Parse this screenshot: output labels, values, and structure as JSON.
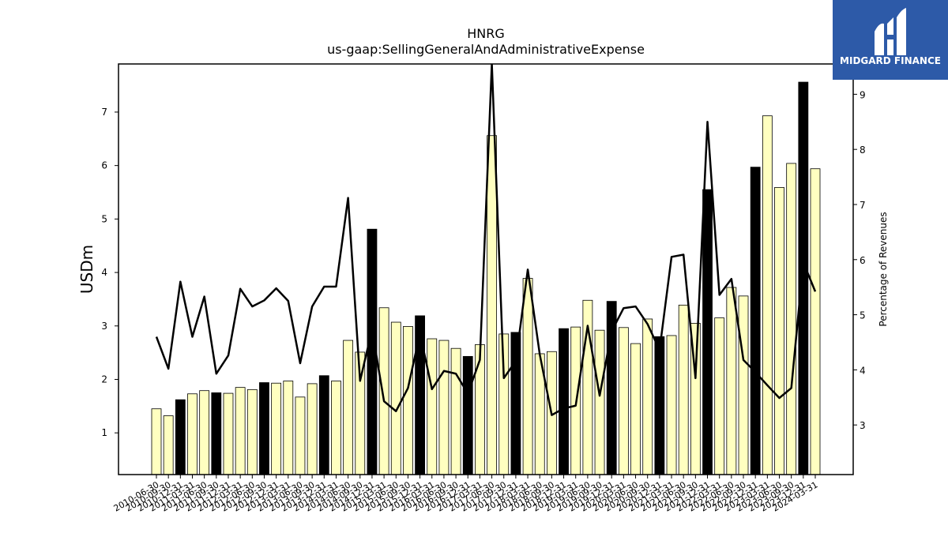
{
  "chart_data": {
    "type": "bar",
    "title": "HNRG",
    "subtitle": "us-gaap:SellingGeneralAndAdministrativeExpense",
    "ylabel": "USDm",
    "ylabel_right": "Percentage of Revenues",
    "ylim": [
      0.22,
      7.9
    ],
    "ylim_right": [
      2.1,
      9.55
    ],
    "yticks": [
      1,
      2,
      3,
      4,
      5,
      6,
      7
    ],
    "yticks_right": [
      3,
      4,
      5,
      6,
      7,
      8,
      9
    ],
    "grid": false,
    "bar_color_default": "#ffffc0",
    "bar_color_highlight": "#000000",
    "line_color": "#000000",
    "categories": [
      "2010-06-30",
      "2010-09-30",
      "2010-12-31",
      "2011-03-31",
      "2011-06-30",
      "2011-09-30",
      "2011-12-31",
      "2012-03-31",
      "2012-06-30",
      "2012-09-30",
      "2012-12-31",
      "2013-03-31",
      "2013-06-30",
      "2013-09-30",
      "2013-12-31",
      "2014-03-31",
      "2014-06-30",
      "2014-09-30",
      "2014-12-31",
      "2015-03-31",
      "2015-06-30",
      "2015-09-30",
      "2015-12-31",
      "2016-03-31",
      "2016-06-30",
      "2016-09-30",
      "2016-12-31",
      "2017-03-31",
      "2017-06-30",
      "2017-09-30",
      "2017-12-31",
      "2018-03-31",
      "2018-06-30",
      "2018-09-30",
      "2018-12-31",
      "2019-03-31",
      "2019-06-30",
      "2019-09-30",
      "2019-12-31",
      "2020-03-31",
      "2020-06-30",
      "2020-09-30",
      "2020-12-31",
      "2021-03-31",
      "2021-06-30",
      "2021-09-30",
      "2021-12-31",
      "2022-03-31",
      "2022-06-30",
      "2022-09-30",
      "2022-12-31",
      "2023-03-31",
      "2023-06-30",
      "2023-09-30",
      "2023-12-31",
      "2024-03-31"
    ],
    "xtick_labels": [
      "2010-06-30",
      "2010-09-30",
      "2010-12-31",
      "2011-03-31",
      "2011-06-30",
      "2011-09-30",
      "2011-12-31",
      "2012-03-31",
      "2012-06-30",
      "2012-09-30",
      "2012-12-31",
      "2013-03-31",
      "2013-06-30",
      "2013-09-30",
      "2013-12-31",
      "2014-03-31",
      "2014-06-30",
      "2014-09-30",
      "2014-12-31",
      "2015-03-31",
      "2015-06-30",
      "2015-09-30",
      "2015-12-31",
      "2016-03-31",
      "2016-06-30",
      "2016-09-30",
      "2016-12-31",
      "2017-03-31",
      "2017-06-30",
      "2017-09-30",
      "2017-12-31",
      "2018-03-31",
      "2018-06-30",
      "2018-09-30",
      "2018-12-31",
      "2019-03-31",
      "2019-06-30",
      "2019-09-30",
      "2019-12-31",
      "2020-03-31",
      "2020-06-30",
      "2020-09-30",
      "2020-12-31",
      "2021-03-31",
      "2021-06-30",
      "2021-09-30",
      "2021-12-31",
      "2022-03-31",
      "2022-06-30",
      "2022-09-30",
      "2022-12-31",
      "2023-03-31",
      "2023-06-30",
      "2023-09-30",
      "2023-12-31",
      "2024-03-31"
    ],
    "series": [
      {
        "axis": "left",
        "kind": "bar",
        "values": [
          1.45,
          1.32,
          1.62,
          1.73,
          1.79,
          1.75,
          1.74,
          1.85,
          1.81,
          1.94,
          1.93,
          1.97,
          1.67,
          1.92,
          2.07,
          1.97,
          2.73,
          2.51,
          4.81,
          3.34,
          3.07,
          2.99,
          3.19,
          2.76,
          2.73,
          2.58,
          2.43,
          2.65,
          6.56,
          2.85,
          2.88,
          3.89,
          2.48,
          2.52,
          2.95,
          2.98,
          3.48,
          2.92,
          3.46,
          2.97,
          2.67,
          3.13,
          2.8,
          2.82,
          3.39,
          3.05,
          5.55,
          3.15,
          3.72,
          3.56,
          5.97,
          6.93,
          5.59,
          6.04,
          7.56,
          5.94
        ],
        "highlight": [
          false,
          false,
          true,
          false,
          false,
          true,
          false,
          false,
          false,
          true,
          false,
          false,
          false,
          false,
          true,
          false,
          false,
          false,
          true,
          false,
          false,
          false,
          true,
          false,
          false,
          false,
          true,
          false,
          false,
          false,
          true,
          false,
          false,
          false,
          true,
          false,
          false,
          false,
          true,
          false,
          false,
          false,
          true,
          false,
          false,
          false,
          true,
          false,
          false,
          false,
          true,
          false,
          false,
          false,
          true,
          false
        ]
      },
      {
        "axis": "right",
        "kind": "line",
        "values": [
          4.6,
          4.02,
          5.6,
          4.6,
          5.33,
          3.93,
          4.26,
          5.47,
          5.15,
          5.26,
          5.48,
          5.25,
          4.12,
          5.15,
          5.51,
          5.51,
          7.12,
          3.8,
          4.73,
          3.43,
          3.25,
          3.67,
          4.66,
          3.65,
          3.98,
          3.93,
          3.57,
          4.18,
          9.55,
          3.85,
          4.16,
          5.82,
          4.28,
          3.18,
          3.3,
          3.35,
          4.8,
          3.53,
          4.7,
          5.12,
          5.15,
          4.83,
          4.36,
          6.05,
          6.09,
          3.85,
          8.5,
          5.36,
          5.65,
          4.18,
          3.96,
          3.72,
          3.49,
          3.67,
          5.95,
          5.42
        ]
      }
    ]
  },
  "logo": {
    "brand_name": "MIDGARD FINANCE",
    "bg_color": "#2d5aa8"
  }
}
